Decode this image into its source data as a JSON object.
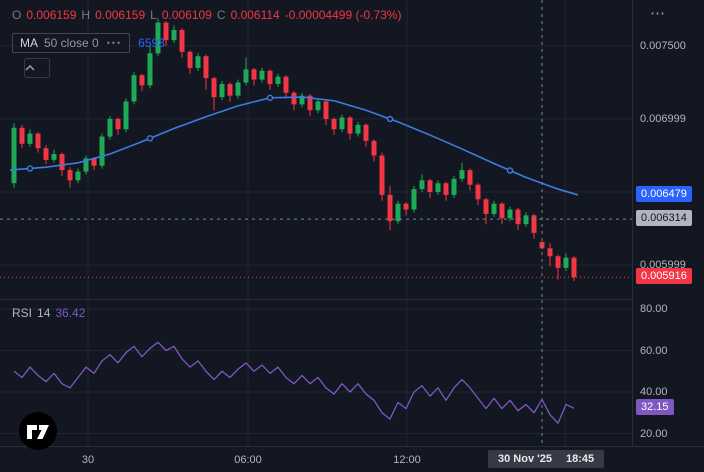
{
  "colors": {
    "background": "#131722",
    "grid": "#1f2633",
    "up": "#1faa58",
    "down": "#f23645",
    "ma_line": "#3b7de0",
    "ma_badge_bg": "#2962ff",
    "rsi_line": "#7e57c2",
    "rsi_badge_bg": "#7e57c2",
    "crosshair": "#758696",
    "crosshair_price_badge_bg": "#b2b5be",
    "crosshair_price_badge_text": "#131722",
    "last_price_badge_bg": "#f23645",
    "badge_text": "#ffffff",
    "axis_text": "#b2b5be",
    "muted_text": "#787b86",
    "legend_value_red": "#f23645",
    "ma_value_blue": "#2962ff",
    "time_badge_bg": "#363a45"
  },
  "legend": {
    "open_label": "O",
    "open": "0.006159",
    "high_label": "H",
    "high": "0.006159",
    "low_label": "L",
    "low": "0.006109",
    "close_label": "C",
    "close": "0.006114",
    "change": "-0.00004499 (-0.73%)",
    "ma_label": "MA",
    "ma_params": "50 close 0",
    "ma_value": "6593"
  },
  "icons": {
    "ma_more_dots": "•••",
    "pane_more_dots": "⋯"
  },
  "rsi_legend": {
    "label": "RSI",
    "period": "14",
    "value": "36.42"
  },
  "price_axis": {
    "labels": [
      {
        "text": "0.007500",
        "price_micro": 7500
      },
      {
        "text": "0.006999",
        "price_micro": 6999
      },
      {
        "text": "0.005999",
        "price_micro": 5999
      }
    ],
    "ma_badge": {
      "text": "0.006479",
      "price_micro": 6479
    },
    "crosshair_badge": {
      "text": "0.006314",
      "price_micro": 6314
    },
    "last_badge": {
      "text": "0.005916",
      "price_micro": 5916
    }
  },
  "rsi_axis": {
    "labels": [
      {
        "text": "80.00",
        "value": 80
      },
      {
        "text": "60.00",
        "value": 60
      },
      {
        "text": "40.00",
        "value": 40
      },
      {
        "text": "20.00",
        "value": 20
      }
    ],
    "badge": {
      "text": "32.15",
      "value": 32.15
    }
  },
  "time_axis": {
    "ticks": [
      {
        "x": 88,
        "label": "30"
      },
      {
        "x": 248,
        "label": "06:00"
      },
      {
        "x": 407,
        "label": "12:00"
      },
      {
        "x": 565,
        "label": ""
      }
    ],
    "crosshair_badge": {
      "date": "30 Nov '25",
      "time": "18:45"
    }
  },
  "crosshair": {
    "index": 66,
    "price_micro": 6314
  },
  "chart_data": [
    {
      "type": "candlestick",
      "name": "Price",
      "price_unit": "micro (value x 1e-6)",
      "ylim_micro": [
        5761,
        7815
      ],
      "grid_prices_micro": [
        7500,
        7000,
        6500,
        6000
      ],
      "last_price_micro": 5916,
      "candles": [
        [
          6560,
          6970,
          6530,
          6940
        ],
        [
          6940,
          6960,
          6800,
          6830
        ],
        [
          6830,
          6930,
          6810,
          6900
        ],
        [
          6900,
          6910,
          6770,
          6800
        ],
        [
          6800,
          6820,
          6690,
          6720
        ],
        [
          6720,
          6790,
          6700,
          6760
        ],
        [
          6760,
          6770,
          6610,
          6650
        ],
        [
          6650,
          6670,
          6530,
          6580
        ],
        [
          6580,
          6660,
          6560,
          6640
        ],
        [
          6640,
          6750,
          6620,
          6730
        ],
        [
          6730,
          6740,
          6650,
          6680
        ],
        [
          6680,
          6900,
          6660,
          6880
        ],
        [
          6880,
          7020,
          6860,
          7000
        ],
        [
          7000,
          7010,
          6890,
          6930
        ],
        [
          6930,
          7140,
          6910,
          7120
        ],
        [
          7120,
          7320,
          7100,
          7300
        ],
        [
          7300,
          7310,
          7190,
          7230
        ],
        [
          7230,
          7500,
          7210,
          7450
        ],
        [
          7450,
          7690,
          7430,
          7660
        ],
        [
          7660,
          7670,
          7500,
          7540
        ],
        [
          7540,
          7640,
          7520,
          7610
        ],
        [
          7610,
          7620,
          7420,
          7460
        ],
        [
          7460,
          7470,
          7310,
          7350
        ],
        [
          7350,
          7450,
          7330,
          7430
        ],
        [
          7430,
          7440,
          7200,
          7280
        ],
        [
          7280,
          7290,
          7060,
          7150
        ],
        [
          7150,
          7260,
          7130,
          7240
        ],
        [
          7240,
          7250,
          7120,
          7160
        ],
        [
          7160,
          7270,
          7140,
          7250
        ],
        [
          7250,
          7420,
          7230,
          7340
        ],
        [
          7340,
          7350,
          7230,
          7270
        ],
        [
          7270,
          7350,
          7250,
          7330
        ],
        [
          7330,
          7340,
          7200,
          7240
        ],
        [
          7240,
          7310,
          7220,
          7290
        ],
        [
          7290,
          7300,
          7140,
          7180
        ],
        [
          7180,
          7190,
          7060,
          7100
        ],
        [
          7100,
          7180,
          7080,
          7160
        ],
        [
          7160,
          7170,
          7020,
          7060
        ],
        [
          7060,
          7140,
          7040,
          7120
        ],
        [
          7120,
          7130,
          6960,
          7000
        ],
        [
          7000,
          7010,
          6890,
          6930
        ],
        [
          6930,
          7030,
          6910,
          7010
        ],
        [
          7010,
          7020,
          6860,
          6900
        ],
        [
          6900,
          6980,
          6880,
          6960
        ],
        [
          6960,
          6970,
          6810,
          6850
        ],
        [
          6850,
          6860,
          6710,
          6750
        ],
        [
          6750,
          6770,
          6440,
          6480
        ],
        [
          6480,
          6540,
          6240,
          6300
        ],
        [
          6300,
          6440,
          6280,
          6420
        ],
        [
          6420,
          6430,
          6340,
          6380
        ],
        [
          6380,
          6540,
          6360,
          6520
        ],
        [
          6520,
          6620,
          6500,
          6580
        ],
        [
          6580,
          6590,
          6460,
          6500
        ],
        [
          6500,
          6580,
          6480,
          6560
        ],
        [
          6560,
          6570,
          6440,
          6480
        ],
        [
          6480,
          6610,
          6460,
          6590
        ],
        [
          6590,
          6700,
          6570,
          6650
        ],
        [
          6650,
          6660,
          6510,
          6550
        ],
        [
          6550,
          6560,
          6410,
          6450
        ],
        [
          6450,
          6460,
          6280,
          6350
        ],
        [
          6350,
          6440,
          6330,
          6420
        ],
        [
          6420,
          6430,
          6280,
          6320
        ],
        [
          6320,
          6400,
          6300,
          6380
        ],
        [
          6380,
          6390,
          6240,
          6280
        ],
        [
          6280,
          6360,
          6260,
          6340
        ],
        [
          6340,
          6350,
          6180,
          6220
        ],
        [
          6159,
          6159,
          6109,
          6114
        ],
        [
          6114,
          6150,
          5990,
          6060
        ],
        [
          6060,
          6070,
          5900,
          5980
        ],
        [
          5980,
          6080,
          5960,
          6050
        ],
        [
          6050,
          6060,
          5890,
          5916
        ]
      ],
      "overlays": [
        {
          "type": "line",
          "name": "MA 50",
          "points": [
            [
              -0.5,
              6650
            ],
            [
              4,
              6670
            ],
            [
              8,
              6700
            ],
            [
              12,
              6760
            ],
            [
              16,
              6845
            ],
            [
              20,
              6935
            ],
            [
              24,
              7015
            ],
            [
              28,
              7090
            ],
            [
              32,
              7145
            ],
            [
              36,
              7150
            ],
            [
              40,
              7125
            ],
            [
              44,
              7060
            ],
            [
              48,
              6980
            ],
            [
              52,
              6890
            ],
            [
              56,
              6795
            ],
            [
              60,
              6695
            ],
            [
              64,
              6600
            ],
            [
              68,
              6520
            ],
            [
              70.5,
              6480
            ]
          ],
          "markers_at": [
            2,
            17,
            32,
            47,
            62
          ]
        }
      ]
    },
    {
      "type": "line",
      "name": "RSI 14",
      "ylim": [
        14,
        84.3
      ],
      "values": [
        50,
        47,
        52,
        48,
        45,
        49,
        44,
        42,
        47,
        52,
        49,
        55,
        58,
        54,
        59,
        62,
        57,
        61,
        64,
        60,
        62,
        56,
        52,
        55,
        50,
        46,
        50,
        47,
        51,
        54,
        50,
        53,
        49,
        52,
        47,
        44,
        48,
        44,
        47,
        42,
        39,
        44,
        40,
        44,
        39,
        36,
        30,
        27,
        35,
        32,
        40,
        43,
        38,
        42,
        36,
        42,
        46,
        42,
        37,
        32,
        37,
        32,
        36,
        31,
        34,
        30,
        36.4,
        29,
        25,
        34,
        32.15
      ]
    }
  ]
}
